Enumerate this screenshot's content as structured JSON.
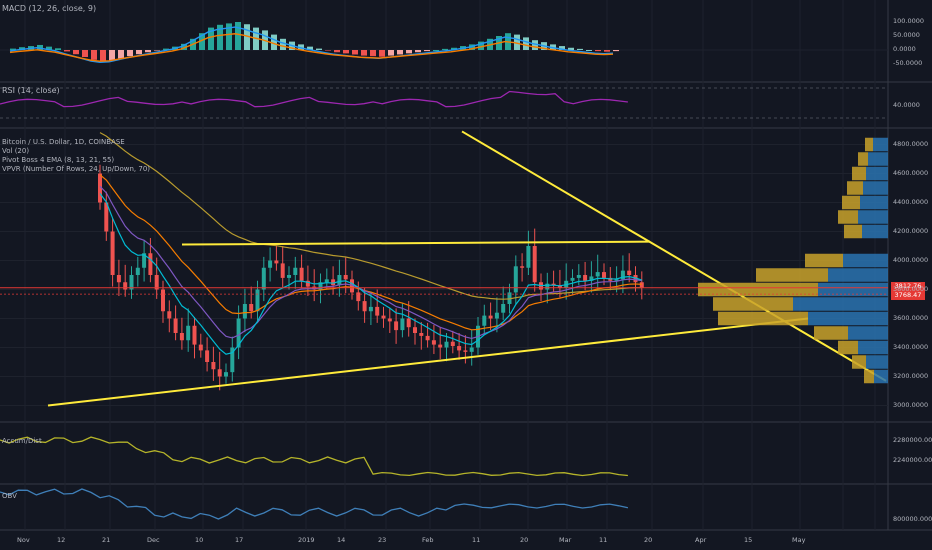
{
  "colors": {
    "bg": "#131722",
    "grid": "#1e222d",
    "sep": "#363a45",
    "up": "#26a69a",
    "down": "#ef5350",
    "upLight": "#80cbc4",
    "downLight": "#f5a6a5",
    "yellow": "#ffeb3b",
    "orange": "#f57c00",
    "blue": "#2196f3",
    "purple": "#9c27b0",
    "ema8": "#e91e63",
    "ema13": "#7e57c2",
    "ema21": "#00bcd4",
    "ema55": "#b89b2e",
    "accdist": "#b5b42a",
    "obv": "#3f7fb8",
    "vpvrUp": "#2a73b0",
    "vpvrDown": "#c9a22a",
    "red": "#e53935"
  },
  "panes": {
    "macd": {
      "label": "MACD (12, 26, close, 9)",
      "ticks": [
        "100.0000",
        "50.0000",
        "0.0000",
        "-50.0000"
      ]
    },
    "rsi": {
      "label": "RSI (14, close)",
      "ticks": [
        "40.0000"
      ]
    },
    "main": {
      "labels": [
        "Bitcoin / U.S. Dollar, 1D, COINBASE",
        "Vol (20)",
        "Pivot Boss 4 EMA (8, 13, 21, 55)",
        "VPVR (Number Of Rows, 24, Up/Down, 70)"
      ],
      "ticks": [
        "4800.0000",
        "4600.0000",
        "4400.0000",
        "4200.0000",
        "4000.0000",
        "3800.0000",
        "3600.0000",
        "3400.0000",
        "3200.0000",
        "3000.0000"
      ],
      "price_tag": "3812.76",
      "price_tag2": "3768.47"
    },
    "accdist": {
      "label": "Accum/Dist",
      "ticks": [
        "2280000.0000",
        "2240000.0000"
      ]
    },
    "obv": {
      "label": "OBV",
      "ticks": [
        "800000.0000"
      ]
    }
  },
  "xaxis": [
    "Nov",
    "12",
    "21",
    "Dec",
    "10",
    "17",
    "2019",
    "14",
    "23",
    "Feb",
    "11",
    "20",
    "Mar",
    "11",
    "20",
    "Apr",
    "15",
    "May"
  ],
  "chart_data": {
    "type": "candlestick",
    "title": "Bitcoin / U.S. Dollar, 1D, COINBASE",
    "ylim": [
      2900,
      4900
    ],
    "ohlc_close": [
      4400,
      4200,
      3900,
      3850,
      3800,
      3900,
      3950,
      4050,
      3900,
      3800,
      3650,
      3600,
      3500,
      3450,
      3550,
      3420,
      3380,
      3300,
      3250,
      3200,
      3230,
      3400,
      3600,
      3700,
      3650,
      3800,
      3950,
      4000,
      3980,
      3880,
      3900,
      3950,
      3860,
      3820,
      3800,
      3850,
      3870,
      3830,
      3900,
      3870,
      3780,
      3720,
      3650,
      3680,
      3620,
      3600,
      3580,
      3520,
      3600,
      3540,
      3500,
      3480,
      3450,
      3420,
      3400,
      3440,
      3410,
      3380,
      3370,
      3400,
      3550,
      3620,
      3600,
      3640,
      3700,
      3780,
      3960,
      3950,
      4100,
      3850,
      3800,
      3840,
      3830,
      3810,
      3860,
      3880,
      3900,
      3860,
      3890,
      3920,
      3880,
      3860,
      3870,
      3930,
      3900,
      3850,
      3812
    ]
  }
}
